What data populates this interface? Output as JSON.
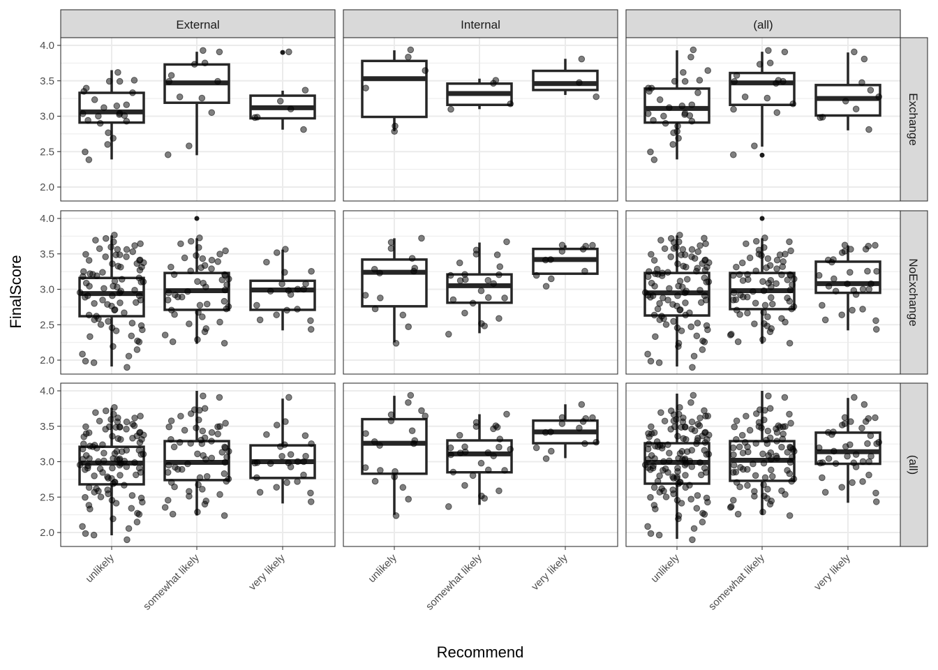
{
  "chart_data": {
    "type": "boxplot",
    "subtype": "faceted boxplot with jittered points",
    "xlabel": "Recommend",
    "ylabel": "FinalScore",
    "categories": [
      "unlikely",
      "somewhat likely",
      "very likely"
    ],
    "columns": [
      "External",
      "Internal",
      "(all)"
    ],
    "rows": [
      "Exchange",
      "NoExchange",
      "(all)"
    ],
    "y_ticks": [
      "2.0",
      "2.5",
      "3.0",
      "3.5",
      "4.0"
    ],
    "ylim": [
      1.8,
      4.11
    ],
    "grid": true,
    "colors": {
      "box": "#262626",
      "point": "#000000",
      "strip": "#d9d9d9",
      "grid": "#ebebeb"
    },
    "boxes": {
      "Exchange|External": [
        {
          "lower": 2.39,
          "q1": 2.91,
          "median": 3.06,
          "q3": 3.33,
          "upper": 3.65,
          "outliers": []
        },
        {
          "lower": 2.45,
          "q1": 3.19,
          "median": 3.47,
          "q3": 3.73,
          "upper": 3.91,
          "outliers": []
        },
        {
          "lower": 2.81,
          "q1": 2.97,
          "median": 3.12,
          "q3": 3.29,
          "upper": 3.36,
          "outliers": [
            3.9
          ]
        }
      ],
      "Exchange|Internal": [
        {
          "lower": 2.79,
          "q1": 2.99,
          "median": 3.53,
          "q3": 3.78,
          "upper": 3.93,
          "outliers": []
        },
        {
          "lower": 3.1,
          "q1": 3.16,
          "median": 3.32,
          "q3": 3.46,
          "upper": 3.53,
          "outliers": []
        },
        {
          "lower": 3.3,
          "q1": 3.37,
          "median": 3.46,
          "q3": 3.64,
          "upper": 3.81,
          "outliers": []
        }
      ],
      "Exchange|(all)": [
        {
          "lower": 2.39,
          "q1": 2.91,
          "median": 3.11,
          "q3": 3.39,
          "upper": 3.93,
          "outliers": []
        },
        {
          "lower": 2.57,
          "q1": 3.16,
          "median": 3.47,
          "q3": 3.61,
          "upper": 3.91,
          "outliers": [
            2.45
          ]
        },
        {
          "lower": 2.8,
          "q1": 3.01,
          "median": 3.25,
          "q3": 3.44,
          "upper": 3.9,
          "outliers": []
        }
      ],
      "NoExchange|External": [
        {
          "lower": 1.91,
          "q1": 2.62,
          "median": 2.94,
          "q3": 3.16,
          "upper": 3.76,
          "outliers": []
        },
        {
          "lower": 2.23,
          "q1": 2.71,
          "median": 2.98,
          "q3": 3.23,
          "upper": 3.72,
          "outliers": [
            4.0
          ]
        },
        {
          "lower": 2.42,
          "q1": 2.71,
          "median": 2.99,
          "q3": 3.12,
          "upper": 3.56,
          "outliers": []
        }
      ],
      "NoExchange|Internal": [
        {
          "lower": 2.25,
          "q1": 2.76,
          "median": 3.24,
          "q3": 3.42,
          "upper": 3.72,
          "outliers": []
        },
        {
          "lower": 2.38,
          "q1": 2.81,
          "median": 3.05,
          "q3": 3.21,
          "upper": 3.66,
          "outliers": []
        },
        {
          "lower": 3.22,
          "q1": 3.22,
          "median": 3.42,
          "q3": 3.57,
          "upper": 3.62,
          "outliers": []
        }
      ],
      "NoExchange|(all)": [
        {
          "lower": 1.91,
          "q1": 2.63,
          "median": 2.95,
          "q3": 3.23,
          "upper": 3.76,
          "outliers": []
        },
        {
          "lower": 2.23,
          "q1": 2.72,
          "median": 2.98,
          "q3": 3.23,
          "upper": 3.72,
          "outliers": [
            4.0
          ]
        },
        {
          "lower": 2.42,
          "q1": 2.95,
          "median": 3.08,
          "q3": 3.39,
          "upper": 3.62,
          "outliers": []
        }
      ],
      "(all)|External": [
        {
          "lower": 1.96,
          "q1": 2.68,
          "median": 2.98,
          "q3": 3.21,
          "upper": 3.76,
          "outliers": []
        },
        {
          "lower": 2.24,
          "q1": 2.74,
          "median": 2.99,
          "q3": 3.29,
          "upper": 4.0,
          "outliers": []
        },
        {
          "lower": 2.41,
          "q1": 2.77,
          "median": 3.0,
          "q3": 3.23,
          "upper": 3.89,
          "outliers": []
        }
      ],
      "(all)|Internal": [
        {
          "lower": 2.25,
          "q1": 2.83,
          "median": 3.26,
          "q3": 3.6,
          "upper": 3.93,
          "outliers": []
        },
        {
          "lower": 2.39,
          "q1": 2.85,
          "median": 3.11,
          "q3": 3.3,
          "upper": 3.67,
          "outliers": []
        },
        {
          "lower": 3.05,
          "q1": 3.26,
          "median": 3.42,
          "q3": 3.58,
          "upper": 3.81,
          "outliers": []
        }
      ],
      "(all)|(all)": [
        {
          "lower": 1.91,
          "q1": 2.69,
          "median": 2.99,
          "q3": 3.26,
          "upper": 3.96,
          "outliers": []
        },
        {
          "lower": 2.25,
          "q1": 2.73,
          "median": 3.02,
          "q3": 3.29,
          "upper": 4.0,
          "outliers": []
        },
        {
          "lower": 2.42,
          "q1": 2.97,
          "median": 3.14,
          "q3": 3.41,
          "upper": 3.9,
          "outliers": []
        }
      ]
    },
    "points": {
      "Exchange|External": [
        [
          3.61,
          3.51,
          3.5,
          3.5,
          3.39,
          3.34,
          3.32,
          3.24,
          3.14,
          3.15,
          3.11,
          3.03,
          3.04,
          3.03,
          3.02,
          3.0,
          2.93,
          2.95,
          2.91,
          2.76,
          2.68,
          2.6,
          2.5,
          2.38
        ],
        [
          3.92,
          3.91,
          3.74,
          3.76,
          3.57,
          3.48,
          3.48,
          3.28,
          3.25,
          3.04,
          2.57,
          2.45
        ],
        [
          3.9,
          3.37,
          3.22,
          3.11,
          2.98,
          2.97,
          2.8
        ]
      ],
      "Exchange|Internal": [
        [
          3.94,
          3.82,
          3.65,
          3.39,
          2.86,
          2.78
        ],
        [
          3.51,
          3.45,
          3.18,
          3.09
        ],
        [
          3.81,
          3.46,
          3.28
        ]
      ],
      "NoExchange|External": [
        [
          3.76,
          3.72,
          3.7,
          3.68,
          3.65,
          3.62,
          3.6,
          3.58,
          3.55,
          3.55,
          3.52,
          3.5,
          3.5,
          3.48,
          3.45,
          3.45,
          3.42,
          3.4,
          3.4,
          3.38,
          3.35,
          3.35,
          3.32,
          3.3,
          3.3,
          3.28,
          3.25,
          3.25,
          3.22,
          3.2,
          3.2,
          3.18,
          3.15,
          3.15,
          3.12,
          3.1,
          3.1,
          3.08,
          3.05,
          3.05,
          3.02,
          3.0,
          3.0,
          2.98,
          2.95,
          2.95,
          2.92,
          2.9,
          2.9,
          2.88,
          2.85,
          2.85,
          2.82,
          2.8,
          2.8,
          2.78,
          2.75,
          2.72,
          2.7,
          2.68,
          2.65,
          2.62,
          2.6,
          2.58,
          2.55,
          2.52,
          2.5,
          2.48,
          2.45,
          2.42,
          2.4,
          2.35,
          2.32,
          2.28,
          2.25,
          2.2,
          2.15,
          2.1,
          2.05,
          2.0,
          1.95,
          1.91
        ],
        [
          3.72,
          3.68,
          3.65,
          3.6,
          3.55,
          3.5,
          3.48,
          3.45,
          3.42,
          3.4,
          3.38,
          3.35,
          3.32,
          3.3,
          3.28,
          3.25,
          3.22,
          3.2,
          3.18,
          3.15,
          3.12,
          3.1,
          3.08,
          3.05,
          3.02,
          3.0,
          2.98,
          2.95,
          2.92,
          2.9,
          2.88,
          2.85,
          2.82,
          2.8,
          2.78,
          2.75,
          2.72,
          2.7,
          2.68,
          2.65,
          2.6,
          2.55,
          2.5,
          2.45,
          2.4,
          2.35,
          2.3,
          2.25,
          2.23
        ],
        [
          3.56,
          3.52,
          3.39,
          3.25,
          3.26,
          3.08,
          3.08,
          2.98,
          2.97,
          2.99,
          2.99,
          2.94,
          2.72,
          2.76,
          2.71,
          2.63,
          2.57,
          2.56,
          2.42
        ]
      ],
      "NoExchange|Internal": [
        [
          3.73,
          3.65,
          3.57,
          3.45,
          3.3,
          3.28,
          3.23,
          3.25,
          2.93,
          2.88,
          2.72,
          2.63,
          2.48,
          2.25
        ],
        [
          3.68,
          3.54,
          3.49,
          3.5,
          3.32,
          3.37,
          3.21,
          3.2,
          3.21,
          3.14,
          3.12,
          3.12,
          3.09,
          2.99,
          2.88,
          2.87,
          2.86,
          2.8,
          2.65,
          2.59,
          2.53,
          2.48,
          2.38
        ],
        [
          3.63,
          3.61,
          3.53,
          3.58,
          3.61,
          3.41,
          3.42,
          3.25,
          3.21,
          3.15,
          3.04
        ]
      ]
    }
  }
}
